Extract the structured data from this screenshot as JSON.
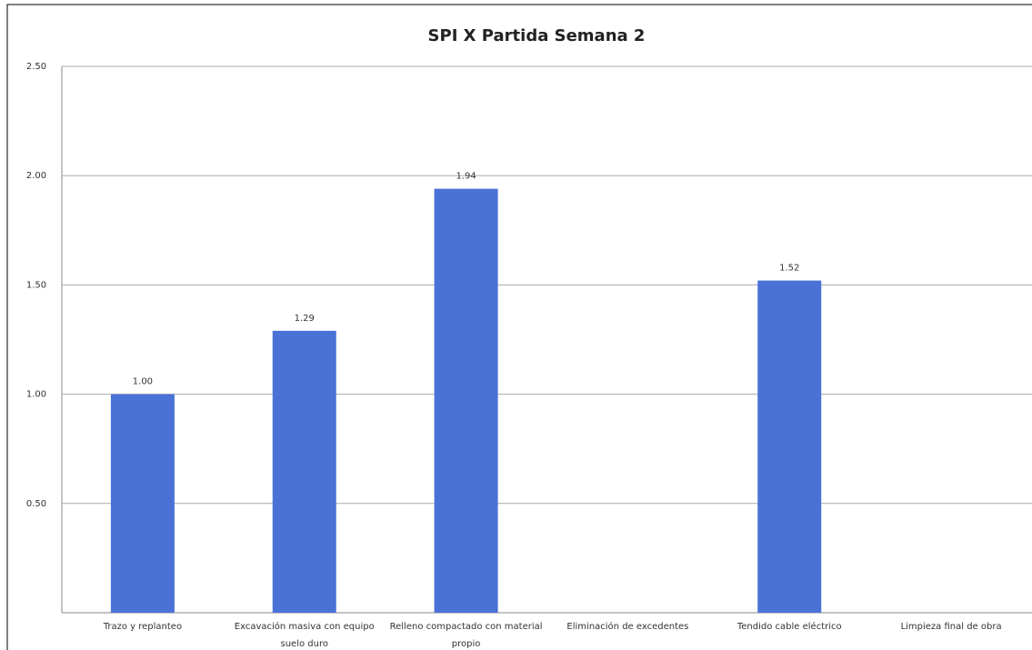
{
  "chart_data": {
    "type": "bar",
    "title": "SPI X Partida   Semana 2",
    "categories": [
      "Trazo y replanteo",
      "Excavación masiva con equipo suelo duro",
      "Relleno compactado con material propio",
      "Eliminación de excedentes",
      "Tendido cable eléctrico",
      "Limpieza final de obra"
    ],
    "values": [
      1.0,
      1.29,
      1.94,
      null,
      1.52,
      null
    ],
    "value_labels": [
      "1.00",
      "1.29",
      "1.94",
      null,
      "1.52",
      null
    ],
    "color": "#4a72d6",
    "ylim": [
      0,
      2.5
    ],
    "yticks": [
      {
        "value": 0.5,
        "label": "0.50"
      },
      {
        "value": 1,
        "label": "1.00"
      },
      {
        "value": 1.5,
        "label": "1.50"
      },
      {
        "value": 2,
        "label": "2.00"
      },
      {
        "value": 2.5,
        "label": "2.50"
      }
    ],
    "grid": true
  }
}
